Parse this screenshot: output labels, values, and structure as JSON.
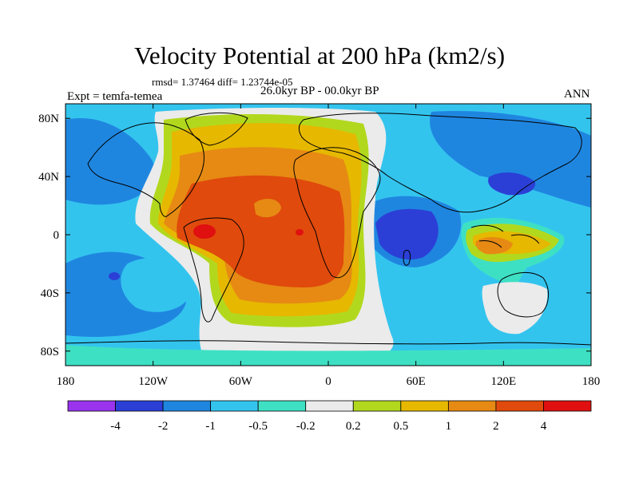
{
  "chart_data": {
    "type": "heatmap",
    "title": "Velocity Potential at 200 hPa (km2/s)",
    "stats_text": "rmsd= 1.37464 diff= 1.23744e-05",
    "period": "26.0kyr BP - 00.0kyr BP",
    "left_label": "Expt = temfa-temea",
    "right_label": "ANN",
    "xlabel": "",
    "ylabel": "",
    "xlim": [
      -180,
      180
    ],
    "ylim": [
      -90,
      90
    ],
    "x_ticks": [
      {
        "value": -180,
        "label": "180"
      },
      {
        "value": -120,
        "label": "120W"
      },
      {
        "value": -60,
        "label": "60W"
      },
      {
        "value": 0,
        "label": "0"
      },
      {
        "value": 60,
        "label": "60E"
      },
      {
        "value": 120,
        "label": "120E"
      },
      {
        "value": 180,
        "label": "180"
      }
    ],
    "y_ticks": [
      {
        "value": 80,
        "label": "80N"
      },
      {
        "value": 40,
        "label": "40N"
      },
      {
        "value": 0,
        "label": "0"
      },
      {
        "value": -40,
        "label": "40S"
      },
      {
        "value": -80,
        "label": "80S"
      }
    ],
    "contour_levels": [
      -4,
      -2,
      -1,
      -0.5,
      -0.2,
      0.2,
      0.5,
      1,
      2,
      4
    ],
    "colorbar": {
      "colors": [
        "#9933ee",
        "#2b3fd6",
        "#1f86e0",
        "#33c4ee",
        "#3ee0c4",
        "#ebebeb",
        "#b2d81e",
        "#e6b800",
        "#e68a14",
        "#e04a0c",
        "#e01010"
      ],
      "labels": [
        "-4",
        "-2",
        "-1",
        "-0.5",
        "-0.2",
        "0.2",
        "0.5",
        "1",
        "2",
        "4"
      ]
    },
    "regions": [
      {
        "name": "atlantic-positive-0.2",
        "level": 0.2,
        "center": [
          -30,
          10
        ]
      },
      {
        "name": "atlantic-positive-0.5",
        "level": 0.5,
        "center": [
          -40,
          15
        ]
      },
      {
        "name": "atlantic-positive-1",
        "level": 1,
        "center": [
          -40,
          10
        ]
      },
      {
        "name": "atlantic-positive-2",
        "level": 2,
        "center": [
          -45,
          10
        ]
      },
      {
        "name": "amazon-max-4",
        "level": 4,
        "center": [
          -83,
          2
        ]
      },
      {
        "name": "atlantic-max-4",
        "level": 4,
        "center": [
          -19,
          2
        ]
      },
      {
        "name": "indian-ocean-min",
        "level": -2,
        "center": [
          60,
          0
        ]
      },
      {
        "name": "east-asia-min",
        "level": -2,
        "center": [
          130,
          38
        ]
      },
      {
        "name": "south-pacific-min",
        "level": -2,
        "center": [
          -145,
          -28
        ]
      },
      {
        "name": "maritime-continent-positive",
        "level": 2,
        "center": [
          120,
          -10
        ]
      },
      {
        "name": "australia-neutral",
        "level": 0.2,
        "center": [
          140,
          -45
        ]
      }
    ]
  }
}
